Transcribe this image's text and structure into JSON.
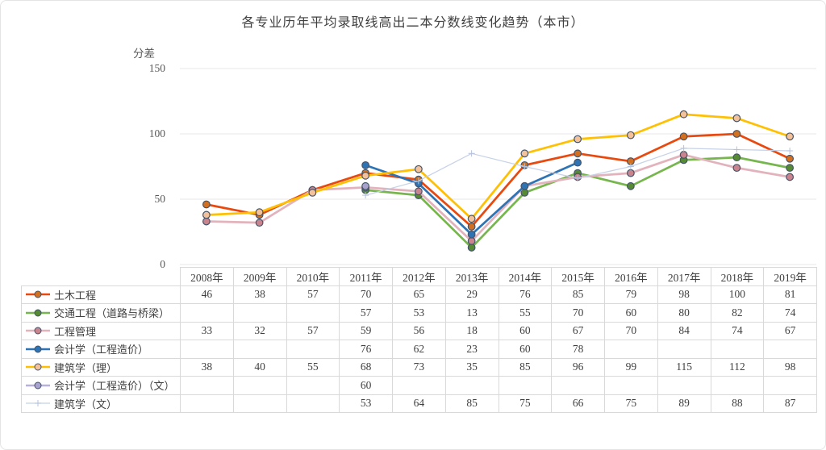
{
  "chart_data": {
    "type": "line",
    "title": "各专业历年平均录取线高出二本分数线变化趋势（本市）",
    "ylabel": "分差",
    "ylim": [
      0,
      150
    ],
    "yticks": [
      0,
      50,
      100,
      150
    ],
    "grid": true,
    "gridline_color": "#e7e7e7",
    "marker_border_color": "#44546a",
    "legend_position": "table-left",
    "categories": [
      "2008年",
      "2009年",
      "2010年",
      "2011年",
      "2012年",
      "2013年",
      "2014年",
      "2015年",
      "2016年",
      "2017年",
      "2018年",
      "2019年"
    ],
    "series": [
      {
        "name": "土木工程",
        "color": "#e8490f",
        "marker": "circle",
        "marker_fill": "#d3701f",
        "values": [
          46,
          38,
          57,
          70,
          65,
          29,
          76,
          85,
          79,
          98,
          100,
          81
        ]
      },
      {
        "name": "交通工程（道路与桥梁）",
        "color": "#77b64e",
        "marker": "circle",
        "marker_fill": "#568a33",
        "values": [
          null,
          null,
          null,
          57,
          53,
          13,
          55,
          70,
          60,
          80,
          82,
          74
        ]
      },
      {
        "name": "工程管理",
        "color": "#e2b3bc",
        "marker": "circle",
        "marker_fill": "#c9848e",
        "values": [
          33,
          32,
          57,
          59,
          56,
          18,
          60,
          67,
          70,
          84,
          74,
          67
        ]
      },
      {
        "name": "会计学（工程造价）",
        "color": "#2e74b5",
        "marker": "circle",
        "marker_fill": "#2e74b5",
        "values": [
          null,
          null,
          null,
          76,
          62,
          23,
          60,
          78,
          null,
          null,
          null,
          null
        ]
      },
      {
        "name": "建筑学（理）",
        "color": "#ffc003",
        "marker": "circle",
        "marker_fill": "#f4c29a",
        "values": [
          38,
          40,
          55,
          68,
          73,
          35,
          85,
          96,
          99,
          115,
          112,
          98
        ]
      },
      {
        "name": "会计学（工程造价）（文）",
        "color": "#b7b1db",
        "marker": "circle",
        "marker_fill": "#a9a2cf",
        "values": [
          null,
          null,
          null,
          60,
          null,
          null,
          null,
          null,
          null,
          null,
          null,
          null
        ]
      },
      {
        "name": "建筑学（文）",
        "color": "#c7d2e8",
        "marker": "plus",
        "marker_fill": "#b3c2dc",
        "values": [
          null,
          null,
          null,
          53,
          64,
          85,
          75,
          66,
          75,
          89,
          88,
          87
        ]
      }
    ]
  },
  "table": {
    "border_color": "#d9d9d9"
  }
}
